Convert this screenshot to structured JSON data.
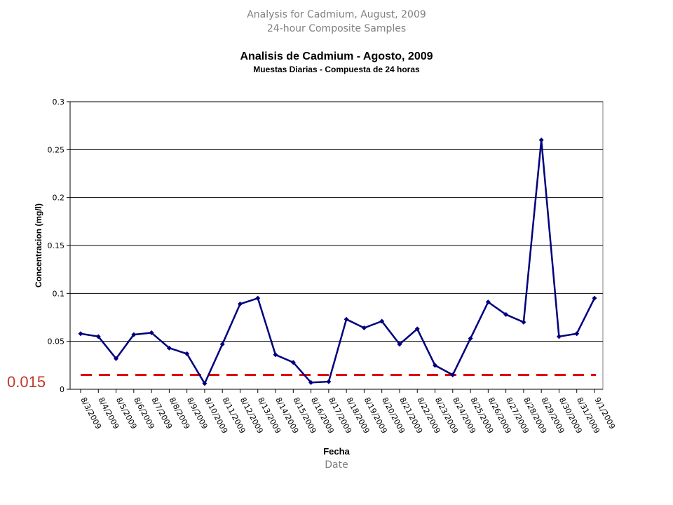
{
  "header": {
    "title_en": "Analysis for Cadmium, August, 2009",
    "subtitle_en": "24-hour Composite Samples",
    "xlabel_en": "Date"
  },
  "chart_data": {
    "type": "line",
    "title": "Analisis de Cadmium - Agosto, 2009",
    "subtitle": "Muestas Diarias - Compuesta de 24 horas",
    "xlabel": "Fecha",
    "ylabel": "Concentracion (mg/l)",
    "ylim": [
      0,
      0.3
    ],
    "yticks": [
      "0",
      "0.05",
      "0.1",
      "0.15",
      "0.2",
      "0.25",
      "0.3"
    ],
    "yticks_values": [
      0,
      0.05,
      0.1,
      0.15,
      0.2,
      0.25,
      0.3
    ],
    "grid": true,
    "categories": [
      "8/3/2009",
      "8/4/2009",
      "8/5/2009",
      "8/6/2009",
      "8/7/2009",
      "8/8/2009",
      "8/9/2009",
      "8/10/2009",
      "8/11/2009",
      "8/12/2009",
      "8/13/2009",
      "8/14/2009",
      "8/15/2009",
      "8/16/2009",
      "8/17/2009",
      "8/18/2009",
      "8/19/2009",
      "8/20/2009",
      "8/21/2009",
      "8/22/2009",
      "8/23/2009",
      "8/24/2009",
      "8/25/2009",
      "8/26/2009",
      "8/27/2009",
      "8/28/2009",
      "8/29/2009",
      "8/30/2009",
      "8/31/2009",
      "9/1/2009"
    ],
    "series": [
      {
        "color": "#00007f",
        "values": [
          0.058,
          0.055,
          0.032,
          0.057,
          0.059,
          0.043,
          0.037,
          0.006,
          0.047,
          0.089,
          0.095,
          0.036,
          0.028,
          0.007,
          0.008,
          0.073,
          0.064,
          0.071,
          0.047,
          0.063,
          0.025,
          0.015,
          0.053,
          0.091,
          0.078,
          0.07,
          0.26,
          0.055,
          0.058,
          0.095
        ]
      }
    ],
    "threshold": {
      "value": 0.015,
      "label": "0.015",
      "color": "#e00000"
    }
  }
}
